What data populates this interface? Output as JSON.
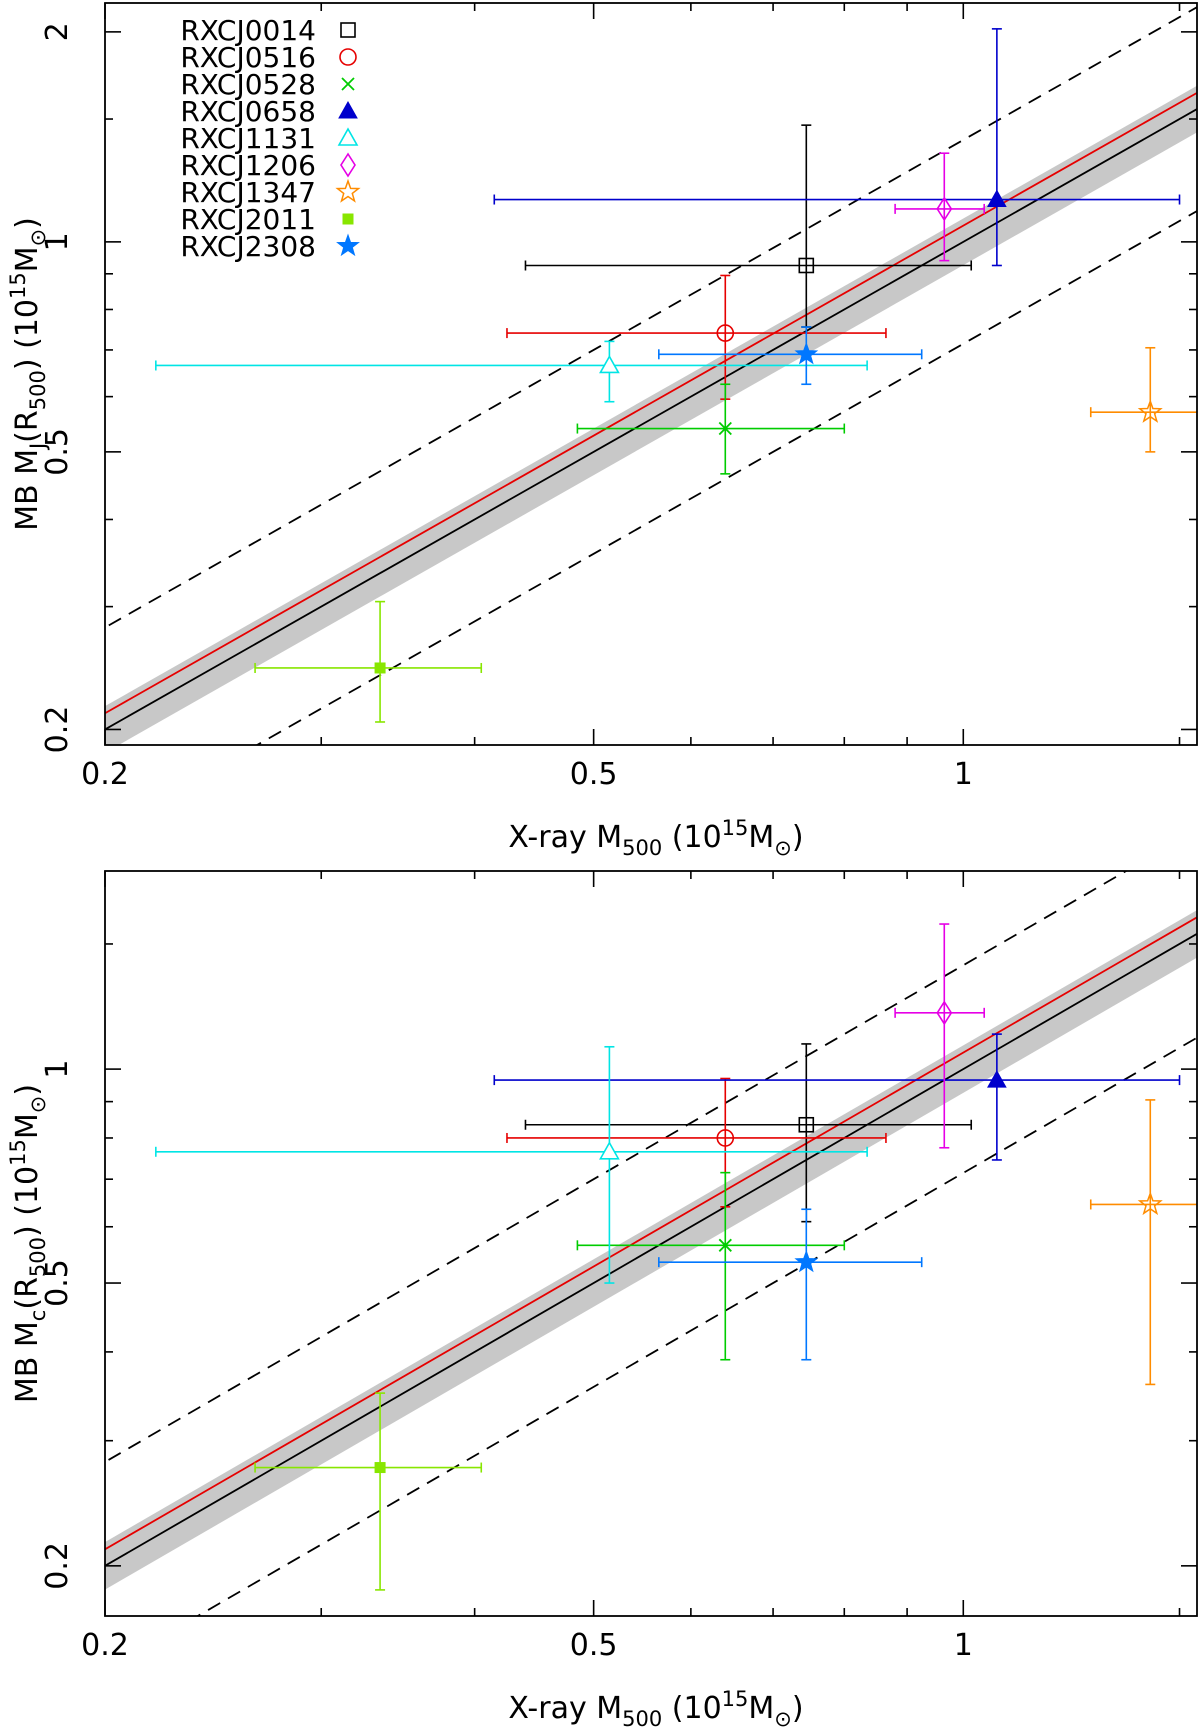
{
  "chart_data": [
    {
      "type": "scatter",
      "title": "",
      "x_scale": "log",
      "y_scale": "log",
      "xlim": [
        0.2,
        1.55
      ],
      "ylim": [
        0.19,
        2.2
      ],
      "xlabel": {
        "main": "X-ray M",
        "sub": "500",
        "rest": " (10",
        "sup": "15",
        "unit": "M",
        "sun_sub": "⊙",
        "close": ")"
      },
      "ylabel": {
        "main": "MB M",
        "sub_var": "J",
        "mid": "(R",
        "sub": "500",
        "rest": ")  (10",
        "sup": "15",
        "unit": "M",
        "sun_sub": "⊙",
        "close": ")"
      },
      "xticks": [
        0.2,
        0.5,
        1
      ],
      "xtick_labels": [
        "0.2",
        "0.5",
        "1"
      ],
      "yticks": [
        0.2,
        0.5,
        1,
        2
      ],
      "ytick_labels": [
        "0.2",
        "0.5",
        "1",
        "2"
      ],
      "legend_placement": "top-left",
      "grid": false,
      "fit": {
        "self_similar_line": "1:1",
        "red_line_ratio": 1.055,
        "band_factor": 1.08,
        "scatter_factor": 1.4
      },
      "series": [
        {
          "name": "RXCJ0014",
          "color": "#000000",
          "marker": "open-square",
          "x": 0.745,
          "xerr": [
            0.44,
            1.015
          ],
          "y": 0.925,
          "yerr": [
            0.755,
            1.47
          ]
        },
        {
          "name": "RXCJ0516",
          "color": "#e60000",
          "marker": "open-circle",
          "x": 0.64,
          "xerr": [
            0.425,
            0.865
          ],
          "y": 0.74,
          "yerr": [
            0.595,
            0.895
          ]
        },
        {
          "name": "RXCJ0528",
          "color": "#00cc00",
          "marker": "cross",
          "x": 0.64,
          "xerr": [
            0.485,
            0.8
          ],
          "y": 0.54,
          "yerr": [
            0.465,
            0.625
          ]
        },
        {
          "name": "RXCJ0658",
          "color": "#0000cc",
          "marker": "filled-triangle",
          "x": 1.065,
          "xerr": [
            0.415,
            1.5
          ],
          "y": 1.15,
          "yerr": [
            0.925,
            2.02
          ]
        },
        {
          "name": "RXCJ1131",
          "color": "#00e5e5",
          "marker": "open-triangle",
          "x": 0.515,
          "xerr": [
            0.22,
            0.835
          ],
          "y": 0.665,
          "yerr": [
            0.59,
            0.72
          ]
        },
        {
          "name": "RXCJ1206",
          "color": "#e600e6",
          "marker": "open-diamond",
          "x": 0.965,
          "xerr": [
            0.88,
            1.04
          ],
          "y": 1.115,
          "yerr": [
            0.94,
            1.34
          ]
        },
        {
          "name": "RXCJ1347",
          "color": "#ff8c00",
          "marker": "open-star",
          "x": 1.42,
          "xerr": [
            1.27,
            1.62
          ],
          "y": 0.57,
          "yerr": [
            0.5,
            0.705
          ]
        },
        {
          "name": "RXCJ2011",
          "color": "#88e600",
          "marker": "filled-square",
          "x": 0.335,
          "xerr": [
            0.265,
            0.405
          ],
          "y": 0.245,
          "yerr": [
            0.205,
            0.305
          ]
        },
        {
          "name": "RXCJ2308",
          "color": "#0077ff",
          "marker": "filled-star",
          "x": 0.745,
          "xerr": [
            0.565,
            0.925
          ],
          "y": 0.69,
          "yerr": [
            0.625,
            0.755
          ]
        }
      ]
    },
    {
      "type": "scatter",
      "title": "",
      "x_scale": "log",
      "y_scale": "log",
      "xlim": [
        0.2,
        1.55
      ],
      "ylim": [
        0.17,
        1.9
      ],
      "xlabel": {
        "main": "X-ray M",
        "sub": "500",
        "rest": " (10",
        "sup": "15",
        "unit": "M",
        "sun_sub": "⊙",
        "close": ")"
      },
      "ylabel": {
        "main": "MB M",
        "sub_var": "c",
        "mid": "(R",
        "sub": "500",
        "rest": ")  (10",
        "sup": "15",
        "unit": "M",
        "sun_sub": "⊙",
        "close": ")"
      },
      "xticks": [
        0.2,
        0.5,
        1
      ],
      "xtick_labels": [
        "0.2",
        "0.5",
        "1"
      ],
      "yticks": [
        0.2,
        0.5,
        1
      ],
      "ytick_labels": [
        "0.2",
        "0.5",
        "1"
      ],
      "grid": false,
      "fit": {
        "self_similar_line": "1:1",
        "red_line_ratio": 1.055,
        "band_factor": 1.08,
        "scatter_factor": 1.4
      },
      "series": [
        {
          "name": "RXCJ0014",
          "color": "#000000",
          "marker": "open-square",
          "x": 0.745,
          "xerr": [
            0.44,
            1.015
          ],
          "y": 0.835,
          "yerr": [
            0.61,
            1.085
          ]
        },
        {
          "name": "RXCJ0516",
          "color": "#e60000",
          "marker": "open-circle",
          "x": 0.64,
          "xerr": [
            0.425,
            0.865
          ],
          "y": 0.8,
          "yerr": [
            0.64,
            0.97
          ]
        },
        {
          "name": "RXCJ0528",
          "color": "#00cc00",
          "marker": "cross",
          "x": 0.64,
          "xerr": [
            0.485,
            0.8
          ],
          "y": 0.565,
          "yerr": [
            0.39,
            0.715
          ]
        },
        {
          "name": "RXCJ0658",
          "color": "#0000cc",
          "marker": "filled-triangle",
          "x": 1.065,
          "xerr": [
            0.415,
            1.5
          ],
          "y": 0.965,
          "yerr": [
            0.745,
            1.12
          ]
        },
        {
          "name": "RXCJ1131",
          "color": "#00e5e5",
          "marker": "open-triangle",
          "x": 0.515,
          "xerr": [
            0.22,
            0.835
          ],
          "y": 0.765,
          "yerr": [
            0.5,
            1.075
          ]
        },
        {
          "name": "RXCJ1206",
          "color": "#e600e6",
          "marker": "open-diamond",
          "x": 0.965,
          "xerr": [
            0.88,
            1.04
          ],
          "y": 1.2,
          "yerr": [
            0.775,
            1.6
          ]
        },
        {
          "name": "RXCJ1347",
          "color": "#ff8c00",
          "marker": "open-star",
          "x": 1.42,
          "xerr": [
            1.27,
            1.62
          ],
          "y": 0.645,
          "yerr": [
            0.36,
            0.905
          ]
        },
        {
          "name": "RXCJ2011",
          "color": "#88e600",
          "marker": "filled-square",
          "x": 0.335,
          "xerr": [
            0.265,
            0.405
          ],
          "y": 0.275,
          "yerr": [
            0.185,
            0.35
          ]
        },
        {
          "name": "RXCJ2308",
          "color": "#0077ff",
          "marker": "filled-star",
          "x": 0.745,
          "xerr": [
            0.565,
            0.925
          ],
          "y": 0.535,
          "yerr": [
            0.39,
            0.635
          ]
        }
      ]
    }
  ]
}
